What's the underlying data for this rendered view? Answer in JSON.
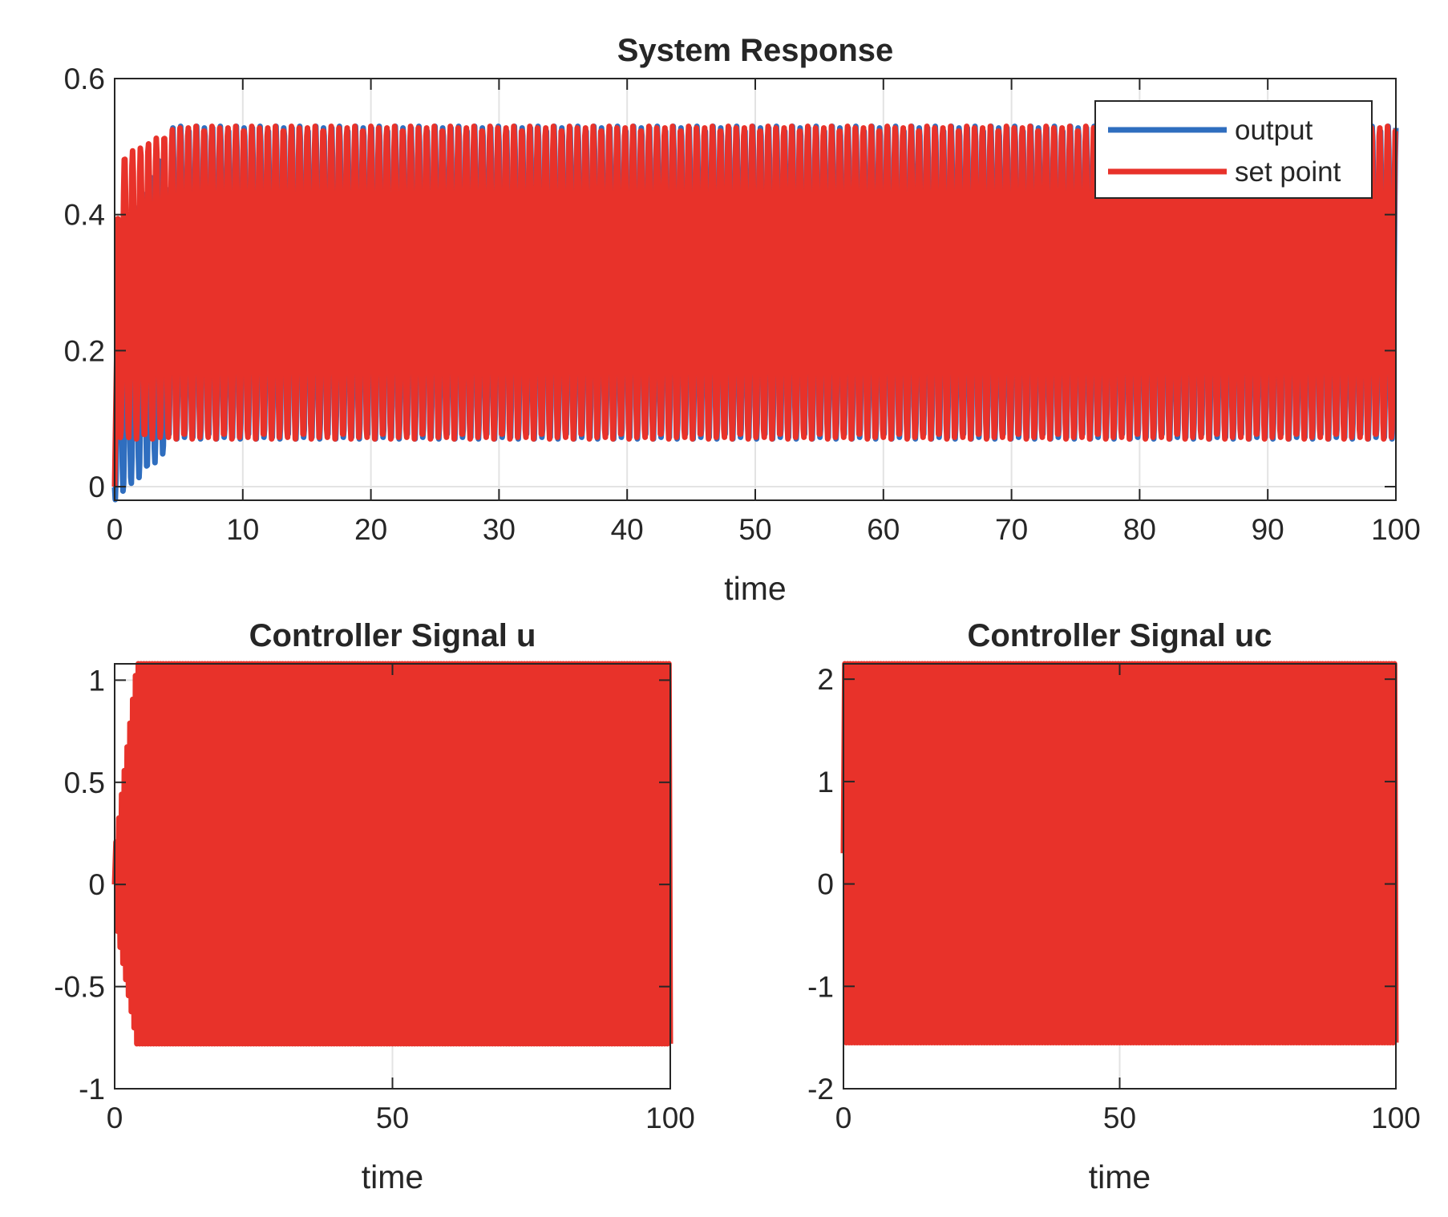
{
  "colors": {
    "output": "#2f6ebf",
    "set_point": "#e8322a",
    "axis": "#262626",
    "grid": "#e3e3e3"
  },
  "chart_data": [
    {
      "id": "system-response",
      "type": "line",
      "title": "System Response",
      "xlabel": "time",
      "ylabel": "",
      "xlim": [
        0,
        100
      ],
      "ylim": [
        -0.02,
        0.6
      ],
      "xticks": [
        "0",
        "10",
        "20",
        "30",
        "40",
        "50",
        "60",
        "70",
        "80",
        "90",
        "100"
      ],
      "xtick_values": [
        0,
        10,
        20,
        30,
        40,
        50,
        60,
        70,
        80,
        90,
        100
      ],
      "yticks": [
        "0",
        "0.2",
        "0.4",
        "0.6"
      ],
      "ytick_values": [
        0,
        0.2,
        0.4,
        0.6
      ],
      "grid": true,
      "legend": {
        "placement": "top-right",
        "entries": [
          "output",
          "set point"
        ]
      },
      "series": [
        {
          "name": "output",
          "color": "#2f6ebf",
          "behavior": "oscillation ~1.6 periods per time unit; transient dips to about -0.02 before t=4, then settles into 0.07–0.53 band"
        },
        {
          "name": "set point",
          "color": "#e8322a",
          "behavior": "oscillation ~1.6 periods per time unit between about 0.07 and 0.53 (peaks rise from 0.48 to 0.53 during first 5 time units)"
        }
      ],
      "envelope": {
        "min": 0.07,
        "max": 0.53,
        "period": 0.62
      }
    },
    {
      "id": "controller-signal-u",
      "type": "line",
      "title": "Controller Signal  u",
      "xlabel": "time",
      "ylabel": "",
      "xlim": [
        0,
        100
      ],
      "ylim": [
        -1,
        1.08
      ],
      "xticks": [
        "0",
        "50",
        "100"
      ],
      "xtick_values": [
        0,
        50,
        100
      ],
      "yticks": [
        "-1",
        "-0.5",
        "0",
        "0.5",
        "1"
      ],
      "ytick_values": [
        -1,
        -0.5,
        0,
        0.5,
        1
      ],
      "grid": true,
      "series": [
        {
          "name": "",
          "color": "#e8322a",
          "behavior": "dense oscillation between about -0.78 and 1.08 after an initial ramp-up during first 4 time units"
        }
      ],
      "envelope": {
        "min": -0.78,
        "max": 1.08
      }
    },
    {
      "id": "controller-signal-uc",
      "type": "line",
      "title": "Controller Signal  uc",
      "xlabel": "time",
      "ylabel": "",
      "xlim": [
        0,
        100
      ],
      "ylim": [
        -2,
        2.15
      ],
      "xticks": [
        "0",
        "50",
        "100"
      ],
      "xtick_values": [
        0,
        50,
        100
      ],
      "yticks": [
        "-2",
        "-1",
        "0",
        "1",
        "2"
      ],
      "ytick_values": [
        -2,
        -1,
        0,
        1,
        2
      ],
      "grid": true,
      "series": [
        {
          "name": "",
          "color": "#e8322a",
          "behavior": "dense oscillation between about -1.55 and 2.15 over the whole time range"
        }
      ],
      "envelope": {
        "min": -1.55,
        "max": 2.15
      }
    }
  ]
}
